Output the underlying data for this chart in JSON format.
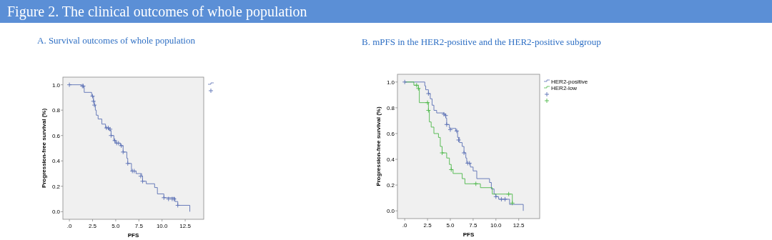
{
  "chart_data": [
    {
      "type": "other",
      "title": "Figure 2. The clinical outcomes of whole population"
    },
    {
      "type": "step",
      "title": "A. Survival outcomes of whole population",
      "xlabel": "PFS",
      "ylabel": "Progression-free survival (%)",
      "xlim": [
        -0.7,
        14.5
      ],
      "ylim": [
        -0.06,
        1.06
      ],
      "xticks": [
        {
          "value": 0,
          "label": ".0"
        },
        {
          "value": 2.5,
          "label": "2.5"
        },
        {
          "value": 5,
          "label": "5.0"
        },
        {
          "value": 7.5,
          "label": "7.5"
        },
        {
          "value": 10,
          "label": "10.0"
        },
        {
          "value": 12.5,
          "label": "12.5"
        }
      ],
      "yticks": [
        {
          "value": 0,
          "label": "0.0"
        },
        {
          "value": 0.2,
          "label": "0.2"
        },
        {
          "value": 0.4,
          "label": "0.4"
        },
        {
          "value": 0.6,
          "label": "0.6"
        },
        {
          "value": 0.8,
          "label": "0.8"
        },
        {
          "value": 1,
          "label": "1.0"
        }
      ],
      "grid": false,
      "legend": "top right",
      "series": [
        {
          "type": "step",
          "color": "#5a6fb4",
          "x": [
            0,
            1.3,
            1.6,
            2.4,
            2.6,
            2.7,
            2.8,
            2.9,
            3.1,
            3.5,
            3.9,
            4.3,
            4.5,
            4.8,
            5.0,
            5.5,
            5.8,
            6.2,
            6.3,
            6.7,
            7.2,
            7.8,
            7.9,
            8.3,
            9.2,
            9.5,
            10.2,
            11.4,
            11.7,
            13.0
          ],
          "values": [
            1.0,
            0.99,
            0.94,
            0.91,
            0.87,
            0.84,
            0.8,
            0.76,
            0.73,
            0.69,
            0.66,
            0.64,
            0.6,
            0.56,
            0.54,
            0.52,
            0.47,
            0.42,
            0.38,
            0.32,
            0.3,
            0.28,
            0.24,
            0.22,
            0.19,
            0.14,
            0.11,
            0.08,
            0.05,
            0.0
          ]
        },
        {
          "type": "scatter",
          "marker": "cross",
          "color": "#5a6fb4",
          "x": [
            0,
            1.4,
            1.5,
            2.5,
            2.6,
            2.7,
            4.0,
            4.2,
            4.4,
            4.5,
            4.9,
            5.1,
            5.3,
            5.6,
            5.8,
            6.3,
            6.8,
            7.0,
            7.7,
            7.9,
            10.2,
            10.7,
            11.1,
            11.3,
            11.7
          ],
          "values": [
            1.0,
            0.99,
            0.99,
            0.91,
            0.87,
            0.84,
            0.66,
            0.66,
            0.65,
            0.6,
            0.56,
            0.54,
            0.54,
            0.52,
            0.47,
            0.38,
            0.32,
            0.32,
            0.28,
            0.24,
            0.11,
            0.1,
            0.1,
            0.1,
            0.05
          ]
        }
      ]
    },
    {
      "type": "step",
      "title": "B. mPFS  in the HER2-positive and  the HER2-positive subgroup",
      "xlabel": "PFS",
      "ylabel": "Progression-free survival (%)",
      "xlim": [
        -0.8,
        14.8
      ],
      "ylim": [
        -0.06,
        1.06
      ],
      "xticks": [
        {
          "value": 0,
          "label": ".0"
        },
        {
          "value": 2.5,
          "label": "2.5"
        },
        {
          "value": 5,
          "label": "5.0"
        },
        {
          "value": 7.5,
          "label": "7.5"
        },
        {
          "value": 10,
          "label": "10.0"
        },
        {
          "value": 12.5,
          "label": "12.5"
        }
      ],
      "yticks": [
        {
          "value": 0,
          "label": "0.0"
        },
        {
          "value": 0.2,
          "label": "0.2"
        },
        {
          "value": 0.4,
          "label": "0.4"
        },
        {
          "value": 0.6,
          "label": "0.6"
        },
        {
          "value": 0.8,
          "label": "0.8"
        },
        {
          "value": 1,
          "label": "1.0"
        }
      ],
      "grid": false,
      "legend": "top right",
      "series": [
        {
          "type": "step",
          "name": "HER2-positive",
          "color": "#5a6fb4",
          "x": [
            0,
            2.2,
            2.3,
            2.6,
            2.8,
            3.0,
            3.2,
            3.5,
            4.3,
            4.5,
            4.6,
            4.9,
            5.6,
            5.8,
            6.0,
            6.3,
            6.5,
            6.7,
            6.8,
            7.2,
            7.5,
            7.9,
            9.3,
            9.5,
            9.8,
            10.0,
            10.3,
            11.5,
            13.0
          ],
          "values": [
            1.0,
            0.97,
            0.94,
            0.91,
            0.87,
            0.82,
            0.78,
            0.76,
            0.75,
            0.72,
            0.67,
            0.64,
            0.62,
            0.57,
            0.53,
            0.5,
            0.45,
            0.41,
            0.37,
            0.34,
            0.31,
            0.25,
            0.22,
            0.17,
            0.13,
            0.11,
            0.09,
            0.05,
            0.0
          ]
        },
        {
          "type": "step",
          "name": "HER2-low",
          "color": "#4cb848",
          "x": [
            0,
            1.0,
            1.5,
            1.6,
            2.6,
            2.7,
            2.9,
            3.2,
            3.7,
            3.9,
            4.1,
            4.6,
            4.9,
            5.1,
            5.3,
            6.3,
            6.6,
            8.3,
            9.6,
            11.8
          ],
          "values": [
            1.0,
            0.975,
            0.95,
            0.84,
            0.78,
            0.69,
            0.65,
            0.6,
            0.57,
            0.5,
            0.45,
            0.41,
            0.36,
            0.32,
            0.29,
            0.25,
            0.21,
            0.18,
            0.13,
            0.06
          ]
        },
        {
          "type": "scatter",
          "marker": "cross",
          "color": "#5a6fb4",
          "x": [
            0,
            2.6,
            4.3,
            4.5,
            4.6,
            5.0,
            5.7,
            5.9,
            6.5,
            6.9,
            7.1,
            10.0,
            10.6,
            11.0
          ],
          "values": [
            1.0,
            0.91,
            0.75,
            0.74,
            0.67,
            0.63,
            0.62,
            0.55,
            0.45,
            0.37,
            0.37,
            0.11,
            0.09,
            0.09
          ]
        },
        {
          "type": "scatter",
          "marker": "cross",
          "color": "#4cb848",
          "x": [
            1.3,
            1.5,
            2.5,
            2.6,
            4.1,
            5.1,
            7.8,
            11.4,
            11.8
          ],
          "values": [
            0.975,
            0.95,
            0.84,
            0.78,
            0.45,
            0.32,
            0.21,
            0.13,
            0.06
          ]
        }
      ]
    }
  ]
}
